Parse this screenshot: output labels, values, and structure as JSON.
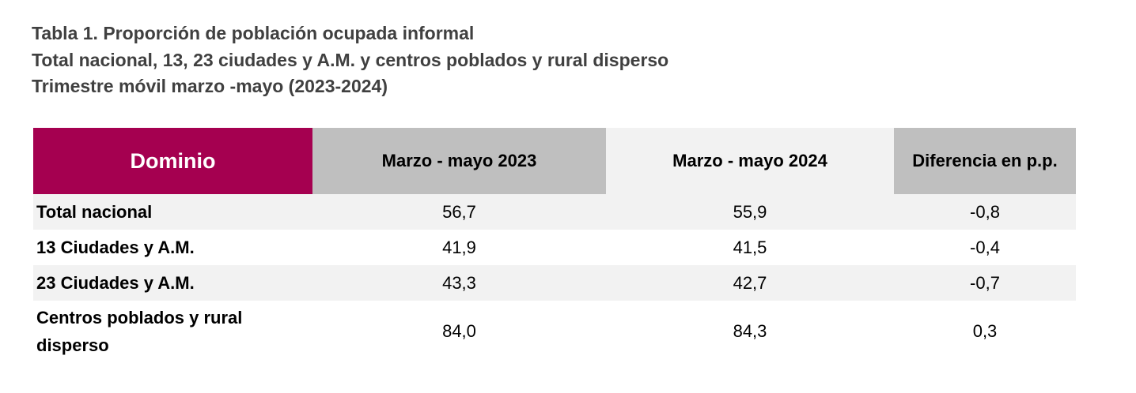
{
  "header": {
    "title": [
      "Tabla 1. Proporción de población ocupada informal",
      "Total nacional, 13, 23 ciudades y A.M. y centros poblados y rural disperso",
      "Trimestre móvil marzo -mayo (2023-2024)"
    ]
  },
  "table": {
    "columns": [
      "Dominio",
      "Marzo - mayo 2023",
      "Marzo - mayo 2024",
      "Diferencia en p.p."
    ],
    "rows": [
      [
        "Total nacional",
        "56,7",
        "55,9",
        "-0,8"
      ],
      [
        "13 Ciudades y A.M.",
        "41,9",
        "41,5",
        "-0,4"
      ],
      [
        "23 Ciudades y A.M.",
        "43,3",
        "42,7",
        "-0,7"
      ],
      [
        "Centros poblados y rural disperso",
        "84,0",
        "84,3",
        "0,3"
      ]
    ]
  }
}
